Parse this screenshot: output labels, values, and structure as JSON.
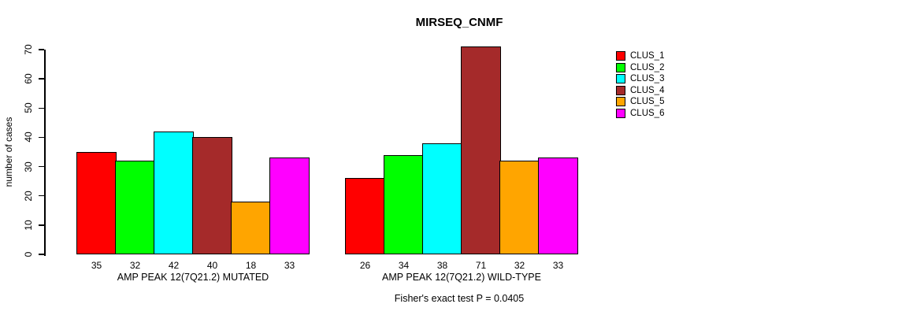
{
  "chart_data": {
    "type": "bar",
    "title": "MIRSEQ_CNMF",
    "ylabel": "number of cases",
    "xlabel": "",
    "ylim": [
      0,
      70
    ],
    "yticks": [
      0,
      10,
      20,
      30,
      40,
      50,
      60,
      70
    ],
    "grid": false,
    "legend_position": "right-outside",
    "series_names": [
      "CLUS_1",
      "CLUS_2",
      "CLUS_3",
      "CLUS_4",
      "CLUS_5",
      "CLUS_6"
    ],
    "series_colors": [
      "#FF0000",
      "#00FF00",
      "#00FFFF",
      "#A52A2A",
      "#FFA500",
      "#FF00FF"
    ],
    "groups": [
      {
        "label": "AMP PEAK 12(7Q21.2) MUTATED",
        "values": [
          35,
          32,
          42,
          40,
          18,
          33
        ]
      },
      {
        "label": "AMP PEAK 12(7Q21.2) WILD-TYPE",
        "values": [
          26,
          34,
          38,
          71,
          32,
          33
        ]
      }
    ],
    "annotation": "Fisher's exact test P = 0.0405"
  },
  "legend": {
    "items": [
      {
        "label": "CLUS_1",
        "color": "#FF0000"
      },
      {
        "label": "CLUS_2",
        "color": "#00FF00"
      },
      {
        "label": "CLUS_3",
        "color": "#00FFFF"
      },
      {
        "label": "CLUS_4",
        "color": "#A52A2A"
      },
      {
        "label": "CLUS_5",
        "color": "#FFA500"
      },
      {
        "label": "CLUS_6",
        "color": "#FF00FF"
      }
    ]
  }
}
